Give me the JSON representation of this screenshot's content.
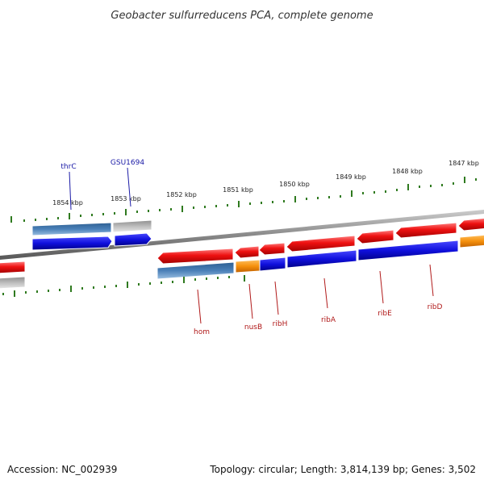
{
  "title": "Geobacter sulfurreducens PCA, complete genome",
  "footer": {
    "accession": "Accession: NC_002939",
    "topology": "Topology: circular; Length: 3,814,139 bp; Genes: 3,502"
  },
  "scale_labels": [
    "1854 kbp",
    "1853 kbp",
    "1852 kbp",
    "1851 kbp",
    "1850 kbp",
    "1849 kbp",
    "1848 kbp",
    "1847 kbp"
  ],
  "gene_labels": {
    "top": [
      "thrC",
      "GSU1694"
    ],
    "bottom": [
      "hom",
      "nusB",
      "ribH",
      "ribA",
      "ribE",
      "ribD"
    ]
  },
  "colors": {
    "backbone": "#8a8a8a",
    "gene_red": "#ee1111",
    "gene_blue": "#1111dd",
    "gene_steel": "#4a80b8",
    "gene_gray": "#b8b8b8",
    "gene_orange": "#f5900c",
    "tick_green": "#2f7a1f",
    "label_blue": "#1a1aa6",
    "label_red": "#b01818"
  }
}
